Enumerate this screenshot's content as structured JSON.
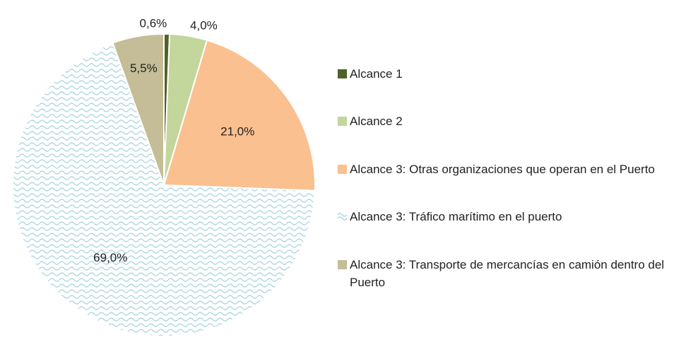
{
  "chart_data": {
    "type": "pie",
    "categories": [
      "Alcance 1",
      "Alcance 2",
      "Alcance 3: Otras organizaciones que operan en el Puerto",
      "Alcance 3: Tráfico marítimo en el puerto",
      "Alcance 3: Transporte de mercancías en camión dentro del Puerto"
    ],
    "values": [
      0.6,
      4.0,
      21.0,
      69.0,
      5.5
    ],
    "value_labels": [
      "0,6%",
      "4,0%",
      "21,0%",
      "69,0%",
      "5,5%"
    ],
    "colors": [
      "#4f6228",
      "#c3d69b",
      "#fac090",
      "#a9d4e0",
      "#c4bd97"
    ],
    "patterns": [
      null,
      null,
      null,
      "wave",
      null
    ],
    "legend": "right"
  }
}
